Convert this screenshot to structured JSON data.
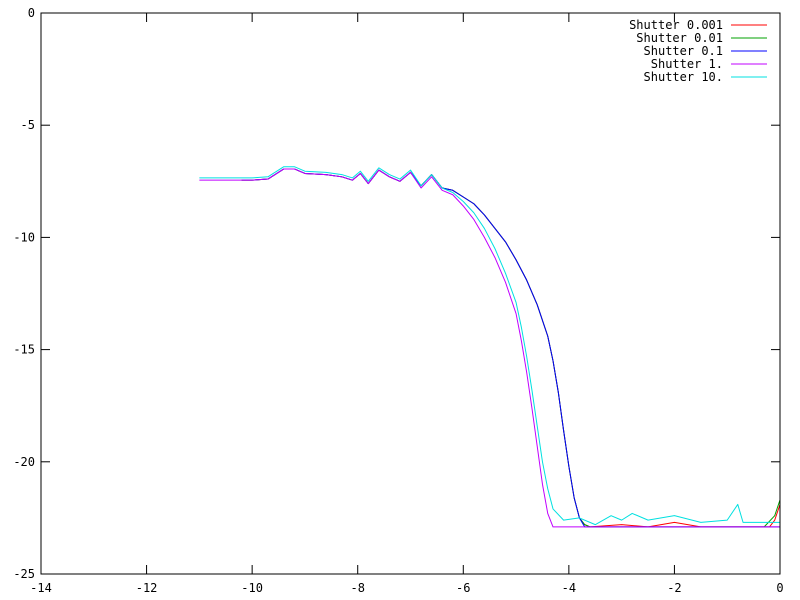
{
  "chart_data": {
    "type": "line",
    "title": "",
    "xlabel": "",
    "ylabel": "",
    "xlim": [
      -14,
      0
    ],
    "ylim": [
      -25,
      0
    ],
    "xticks": [
      -14,
      -12,
      -10,
      -8,
      -6,
      -4,
      -2,
      0
    ],
    "yticks": [
      0,
      -5,
      -10,
      -15,
      -20,
      -25
    ],
    "xtick_labels": [
      "-14",
      "-12",
      "-10",
      "-8",
      "-6",
      "-4",
      "-2",
      "0"
    ],
    "ytick_labels": [
      "0",
      "-5",
      "-10",
      "-15",
      "-20",
      "-25"
    ],
    "grid": false,
    "legend_position": "top-right",
    "series": [
      {
        "name": "Shutter 0.001",
        "color": "#ff0000",
        "points": [
          [
            -10.2,
            -7.45
          ],
          [
            -10.0,
            -7.45
          ],
          [
            -9.7,
            -7.4
          ],
          [
            -9.4,
            -6.95
          ],
          [
            -9.2,
            -6.95
          ],
          [
            -9.0,
            -7.15
          ],
          [
            -8.6,
            -7.2
          ],
          [
            -8.3,
            -7.3
          ],
          [
            -8.1,
            -7.45
          ],
          [
            -7.95,
            -7.15
          ],
          [
            -7.8,
            -7.6
          ],
          [
            -7.6,
            -7.0
          ],
          [
            -7.4,
            -7.3
          ],
          [
            -7.2,
            -7.5
          ],
          [
            -7.0,
            -7.1
          ],
          [
            -6.8,
            -7.7
          ],
          [
            -6.6,
            -7.2
          ],
          [
            -6.4,
            -7.8
          ],
          [
            -6.2,
            -7.9
          ],
          [
            -6.0,
            -8.2
          ],
          [
            -5.8,
            -8.5
          ],
          [
            -5.6,
            -9.0
          ],
          [
            -5.4,
            -9.6
          ],
          [
            -5.2,
            -10.2
          ],
          [
            -5.0,
            -11.0
          ],
          [
            -4.8,
            -11.9
          ],
          [
            -4.6,
            -13.0
          ],
          [
            -4.4,
            -14.4
          ],
          [
            -4.3,
            -15.5
          ],
          [
            -4.2,
            -16.9
          ],
          [
            -4.1,
            -18.6
          ],
          [
            -4.0,
            -20.2
          ],
          [
            -3.9,
            -21.6
          ],
          [
            -3.8,
            -22.5
          ],
          [
            -3.7,
            -22.8
          ],
          [
            -3.6,
            -22.9
          ],
          [
            -3.0,
            -22.8
          ],
          [
            -2.5,
            -22.9
          ],
          [
            -2.0,
            -22.7
          ],
          [
            -1.5,
            -22.9
          ],
          [
            -1.0,
            -22.9
          ],
          [
            -0.5,
            -22.9
          ],
          [
            -0.2,
            -22.9
          ],
          [
            -0.1,
            -22.6
          ],
          [
            0.0,
            -21.9
          ]
        ]
      },
      {
        "name": "Shutter 0.01",
        "color": "#00a000",
        "points": [
          [
            -10.2,
            -7.45
          ],
          [
            -10.0,
            -7.45
          ],
          [
            -9.7,
            -7.4
          ],
          [
            -9.4,
            -6.95
          ],
          [
            -9.2,
            -6.95
          ],
          [
            -9.0,
            -7.15
          ],
          [
            -8.6,
            -7.2
          ],
          [
            -8.3,
            -7.3
          ],
          [
            -8.1,
            -7.45
          ],
          [
            -7.95,
            -7.15
          ],
          [
            -7.8,
            -7.6
          ],
          [
            -7.6,
            -7.0
          ],
          [
            -7.4,
            -7.3
          ],
          [
            -7.2,
            -7.5
          ],
          [
            -7.0,
            -7.1
          ],
          [
            -6.8,
            -7.7
          ],
          [
            -6.6,
            -7.2
          ],
          [
            -6.4,
            -7.8
          ],
          [
            -6.2,
            -7.9
          ],
          [
            -6.0,
            -8.2
          ],
          [
            -5.8,
            -8.5
          ],
          [
            -5.6,
            -9.0
          ],
          [
            -5.4,
            -9.6
          ],
          [
            -5.2,
            -10.2
          ],
          [
            -5.0,
            -11.0
          ],
          [
            -4.8,
            -11.9
          ],
          [
            -4.6,
            -13.0
          ],
          [
            -4.4,
            -14.4
          ],
          [
            -4.3,
            -15.5
          ],
          [
            -4.2,
            -16.9
          ],
          [
            -4.1,
            -18.6
          ],
          [
            -4.0,
            -20.2
          ],
          [
            -3.9,
            -21.6
          ],
          [
            -3.8,
            -22.5
          ],
          [
            -3.7,
            -22.8
          ],
          [
            -3.6,
            -22.9
          ],
          [
            -3.0,
            -22.9
          ],
          [
            -2.0,
            -22.9
          ],
          [
            -1.0,
            -22.9
          ],
          [
            -0.3,
            -22.9
          ],
          [
            -0.1,
            -22.4
          ],
          [
            0.0,
            -21.7
          ]
        ]
      },
      {
        "name": "Shutter 0.1",
        "color": "#0000ff",
        "points": [
          [
            -10.2,
            -7.45
          ],
          [
            -10.0,
            -7.45
          ],
          [
            -9.7,
            -7.4
          ],
          [
            -9.4,
            -6.95
          ],
          [
            -9.2,
            -6.95
          ],
          [
            -9.0,
            -7.15
          ],
          [
            -8.6,
            -7.2
          ],
          [
            -8.3,
            -7.3
          ],
          [
            -8.1,
            -7.45
          ],
          [
            -7.95,
            -7.15
          ],
          [
            -7.8,
            -7.6
          ],
          [
            -7.6,
            -7.0
          ],
          [
            -7.4,
            -7.3
          ],
          [
            -7.2,
            -7.5
          ],
          [
            -7.0,
            -7.1
          ],
          [
            -6.8,
            -7.7
          ],
          [
            -6.6,
            -7.2
          ],
          [
            -6.4,
            -7.8
          ],
          [
            -6.2,
            -7.9
          ],
          [
            -6.0,
            -8.2
          ],
          [
            -5.8,
            -8.5
          ],
          [
            -5.6,
            -9.0
          ],
          [
            -5.4,
            -9.6
          ],
          [
            -5.2,
            -10.2
          ],
          [
            -5.0,
            -11.0
          ],
          [
            -4.8,
            -11.9
          ],
          [
            -4.6,
            -13.0
          ],
          [
            -4.4,
            -14.4
          ],
          [
            -4.3,
            -15.5
          ],
          [
            -4.2,
            -16.9
          ],
          [
            -4.1,
            -18.6
          ],
          [
            -4.0,
            -20.2
          ],
          [
            -3.9,
            -21.6
          ],
          [
            -3.8,
            -22.5
          ],
          [
            -3.7,
            -22.9
          ],
          [
            -3.0,
            -22.9
          ],
          [
            -2.0,
            -22.9
          ],
          [
            -1.0,
            -22.9
          ],
          [
            0.0,
            -22.9
          ]
        ]
      },
      {
        "name": "Shutter 1.",
        "color": "#c000ff",
        "points": [
          [
            -11.0,
            -7.45
          ],
          [
            -10.0,
            -7.45
          ],
          [
            -9.7,
            -7.4
          ],
          [
            -9.4,
            -6.95
          ],
          [
            -9.2,
            -6.95
          ],
          [
            -9.0,
            -7.15
          ],
          [
            -8.6,
            -7.2
          ],
          [
            -8.3,
            -7.3
          ],
          [
            -8.1,
            -7.45
          ],
          [
            -7.95,
            -7.15
          ],
          [
            -7.8,
            -7.6
          ],
          [
            -7.6,
            -7.0
          ],
          [
            -7.4,
            -7.3
          ],
          [
            -7.2,
            -7.5
          ],
          [
            -7.0,
            -7.1
          ],
          [
            -6.8,
            -7.8
          ],
          [
            -6.6,
            -7.3
          ],
          [
            -6.4,
            -7.9
          ],
          [
            -6.2,
            -8.1
          ],
          [
            -6.0,
            -8.6
          ],
          [
            -5.8,
            -9.2
          ],
          [
            -5.6,
            -10.0
          ],
          [
            -5.4,
            -10.9
          ],
          [
            -5.2,
            -12.0
          ],
          [
            -5.0,
            -13.4
          ],
          [
            -4.9,
            -14.6
          ],
          [
            -4.8,
            -16.0
          ],
          [
            -4.7,
            -17.6
          ],
          [
            -4.6,
            -19.3
          ],
          [
            -4.5,
            -21.0
          ],
          [
            -4.4,
            -22.3
          ],
          [
            -4.3,
            -22.9
          ],
          [
            -3.0,
            -22.9
          ],
          [
            -2.0,
            -22.9
          ],
          [
            -1.0,
            -22.9
          ],
          [
            0.0,
            -22.9
          ]
        ]
      },
      {
        "name": "Shutter 10.",
        "color": "#00e0e0",
        "points": [
          [
            -11.0,
            -7.35
          ],
          [
            -10.0,
            -7.35
          ],
          [
            -9.7,
            -7.3
          ],
          [
            -9.4,
            -6.85
          ],
          [
            -9.2,
            -6.85
          ],
          [
            -9.0,
            -7.05
          ],
          [
            -8.6,
            -7.1
          ],
          [
            -8.3,
            -7.2
          ],
          [
            -8.1,
            -7.35
          ],
          [
            -7.95,
            -7.05
          ],
          [
            -7.8,
            -7.5
          ],
          [
            -7.6,
            -6.9
          ],
          [
            -7.4,
            -7.2
          ],
          [
            -7.2,
            -7.4
          ],
          [
            -7.0,
            -7.0
          ],
          [
            -6.8,
            -7.7
          ],
          [
            -6.6,
            -7.2
          ],
          [
            -6.4,
            -7.8
          ],
          [
            -6.2,
            -8.0
          ],
          [
            -6.0,
            -8.4
          ],
          [
            -5.8,
            -8.9
          ],
          [
            -5.6,
            -9.6
          ],
          [
            -5.4,
            -10.5
          ],
          [
            -5.2,
            -11.6
          ],
          [
            -5.0,
            -12.9
          ],
          [
            -4.9,
            -14.0
          ],
          [
            -4.8,
            -15.3
          ],
          [
            -4.7,
            -16.8
          ],
          [
            -4.6,
            -18.4
          ],
          [
            -4.5,
            -20.0
          ],
          [
            -4.4,
            -21.2
          ],
          [
            -4.3,
            -22.1
          ],
          [
            -4.1,
            -22.6
          ],
          [
            -3.8,
            -22.5
          ],
          [
            -3.5,
            -22.8
          ],
          [
            -3.2,
            -22.4
          ],
          [
            -3.0,
            -22.6
          ],
          [
            -2.8,
            -22.3
          ],
          [
            -2.5,
            -22.6
          ],
          [
            -2.0,
            -22.4
          ],
          [
            -1.5,
            -22.7
          ],
          [
            -1.0,
            -22.6
          ],
          [
            -0.8,
            -21.9
          ],
          [
            -0.7,
            -22.7
          ],
          [
            -0.3,
            -22.7
          ],
          [
            0.0,
            -22.7
          ]
        ]
      }
    ]
  }
}
